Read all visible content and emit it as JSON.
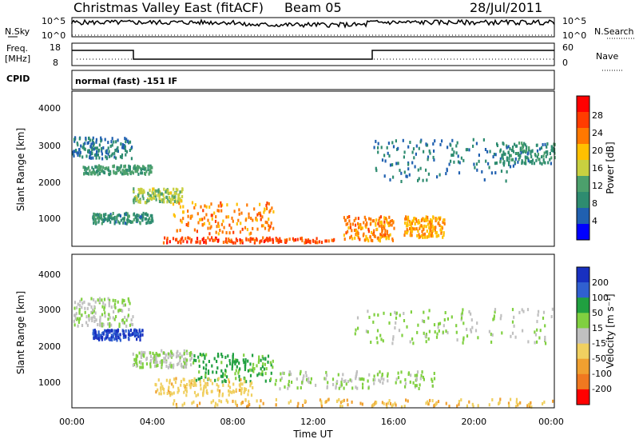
{
  "header": {
    "station": "Christmas Valley East (fitACF)",
    "beam": "Beam 05",
    "date": "28/Jul/2011"
  },
  "strips": {
    "nsky_label": "N.Sky",
    "nsky_ticks": [
      "10^5",
      "10^0"
    ],
    "nsearch_label": "N.Search",
    "freq_label": "Freq.",
    "freq_unit": "[MHz]",
    "freq_ticks": [
      "18",
      "8"
    ],
    "nave_label": "Nave",
    "nave_ticks": [
      "60",
      "0"
    ],
    "cpid_label": "CPID",
    "cpid_value": "normal (fast) -151 IF"
  },
  "axes": {
    "ylabel": "Slant Range [km]",
    "yticks": [
      "4000",
      "3000",
      "2000",
      "1000"
    ],
    "xlabel": "Time UT",
    "xticks": [
      "00:00",
      "04:00",
      "08:00",
      "12:00",
      "16:00",
      "20:00",
      "00:00"
    ]
  },
  "power_scale": {
    "label": "Power [dB]",
    "ticks": [
      "28",
      "24",
      "20",
      "16",
      "12",
      "8",
      "4"
    ],
    "colors": [
      "#ff0000",
      "#ff3c00",
      "#ff7800",
      "#ffc000",
      "#c8d040",
      "#4ca06c",
      "#2e8c70",
      "#2060b0",
      "#0000ff"
    ]
  },
  "velocity_scale": {
    "label": "Velocity [m s⁻¹]",
    "ticks": [
      "200",
      "100",
      "50",
      "15",
      "-15",
      "-50",
      "-100",
      "-200"
    ],
    "colors": [
      "#1830c0",
      "#3060d0",
      "#20a040",
      "#80d040",
      "#c0c0c0",
      "#f0d060",
      "#f0a030",
      "#f07820",
      "#ff0000"
    ]
  },
  "chart_data": {
    "type": "heatmap",
    "x_range_hours_ut": [
      0,
      24
    ],
    "y_range_km": [
      180,
      4600
    ],
    "gridlines": false,
    "panels": [
      {
        "name": "Power",
        "regions": [
          {
            "t0": 0.0,
            "t1": 3.0,
            "r0": 2650,
            "r1": 3250,
            "value": 6
          },
          {
            "t0": 0.5,
            "t1": 4.0,
            "r0": 2200,
            "r1": 2450,
            "value": 10
          },
          {
            "t0": 3.0,
            "t1": 5.5,
            "r0": 1400,
            "r1": 1800,
            "value": 14
          },
          {
            "t0": 1.0,
            "t1": 4.0,
            "r0": 800,
            "r1": 1100,
            "value": 8
          },
          {
            "t0": 5.0,
            "t1": 10.0,
            "r0": 500,
            "r1": 1400,
            "value": 22
          },
          {
            "t0": 4.5,
            "t1": 13.0,
            "r0": 250,
            "r1": 400,
            "value": 26
          },
          {
            "t0": 13.5,
            "t1": 16.0,
            "r0": 300,
            "r1": 1000,
            "value": 22
          },
          {
            "t0": 16.5,
            "t1": 18.5,
            "r0": 400,
            "r1": 1000,
            "value": 20
          },
          {
            "t0": 15.0,
            "t1": 22.0,
            "r0": 2000,
            "r1": 3200,
            "value": 6
          },
          {
            "t0": 21.0,
            "t1": 24.0,
            "r0": 2500,
            "r1": 3100,
            "value": 8
          }
        ]
      },
      {
        "name": "Velocity",
        "regions": [
          {
            "t0": 0.0,
            "t1": 3.0,
            "r0": 2500,
            "r1": 3300,
            "value": 0
          },
          {
            "t0": 1.0,
            "t1": 3.5,
            "r0": 2100,
            "r1": 2400,
            "value": 150
          },
          {
            "t0": 3.0,
            "t1": 6.0,
            "r0": 1300,
            "r1": 1800,
            "value": 0
          },
          {
            "t0": 6.0,
            "t1": 10.0,
            "r0": 900,
            "r1": 1700,
            "value": 40
          },
          {
            "t0": 4.0,
            "t1": 9.0,
            "r0": 500,
            "r1": 1000,
            "value": -60
          },
          {
            "t0": 10.0,
            "t1": 18.0,
            "r0": 700,
            "r1": 1200,
            "value": 0
          },
          {
            "t0": 5.0,
            "t1": 24.0,
            "r0": 180,
            "r1": 400,
            "value": -70
          },
          {
            "t0": 14.0,
            "t1": 24.0,
            "r0": 2000,
            "r1": 3000,
            "value": 0
          }
        ]
      }
    ]
  }
}
